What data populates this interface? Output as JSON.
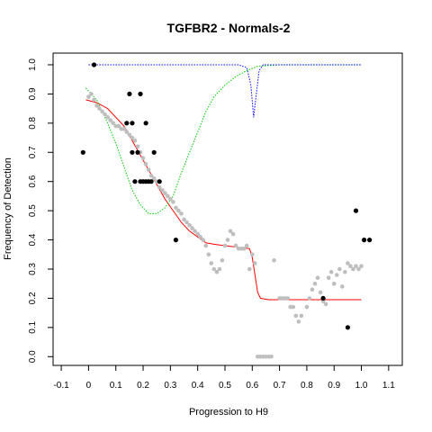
{
  "chart_data": {
    "type": "scatter",
    "title": "TGFBR2 - Normals-2",
    "xlabel": "Progression to H9",
    "ylabel": "Frequency of Detection",
    "xlim": [
      -0.13,
      1.15
    ],
    "ylim": [
      -0.03,
      1.04
    ],
    "x_ticks": [
      -0.1,
      0.0,
      0.1,
      0.2,
      0.3,
      0.4,
      0.5,
      0.6,
      0.7,
      0.8,
      0.9,
      1.0,
      1.1
    ],
    "x_tick_labels": [
      "-0.1",
      "0",
      "0.1",
      "0.2",
      "0.3",
      "0.4",
      "0.5",
      "0.6",
      "0.7",
      "0.8",
      "0.9",
      "1.0",
      "1.1"
    ],
    "y_ticks": [
      0.0,
      0.1,
      0.2,
      0.3,
      0.4,
      0.5,
      0.6,
      0.7,
      0.8,
      0.9,
      1.0
    ],
    "y_tick_labels": [
      "0.0",
      "0.1",
      "0.2",
      "0.3",
      "0.4",
      "0.5",
      "0.6",
      "0.7",
      "0.8",
      "0.9",
      "1.0"
    ],
    "grid": false,
    "colors": {
      "gray_points": "#bebebe",
      "black_points": "#000000",
      "red_curve": "#ff0000",
      "green_curve": "#00cc00",
      "blue_curve": "#0000ff"
    },
    "series": [
      {
        "kind": "points",
        "color_key": "black_points",
        "points": [
          [
            -0.02,
            0.7
          ],
          [
            0.02,
            1.0
          ],
          [
            0.15,
            0.9
          ],
          [
            0.19,
            0.9
          ],
          [
            0.14,
            0.8
          ],
          [
            0.16,
            0.8
          ],
          [
            0.21,
            0.8
          ],
          [
            0.16,
            0.7
          ],
          [
            0.18,
            0.7
          ],
          [
            0.24,
            0.7
          ],
          [
            0.17,
            0.6
          ],
          [
            0.19,
            0.6
          ],
          [
            0.2,
            0.6
          ],
          [
            0.21,
            0.6
          ],
          [
            0.22,
            0.6
          ],
          [
            0.23,
            0.6
          ],
          [
            0.26,
            0.6
          ],
          [
            0.32,
            0.4
          ],
          [
            0.86,
            0.2
          ],
          [
            0.95,
            0.1
          ],
          [
            0.98,
            0.5
          ],
          [
            1.01,
            0.4
          ],
          [
            1.03,
            0.4
          ]
        ]
      },
      {
        "kind": "points",
        "color_key": "gray_points",
        "points": [
          [
            0.0,
            0.89
          ],
          [
            0.01,
            0.9
          ],
          [
            0.02,
            0.88
          ],
          [
            0.03,
            0.86
          ],
          [
            0.04,
            0.85
          ],
          [
            0.05,
            0.84
          ],
          [
            0.06,
            0.83
          ],
          [
            0.07,
            0.82
          ],
          [
            0.08,
            0.81
          ],
          [
            0.09,
            0.8
          ],
          [
            0.1,
            0.79
          ],
          [
            0.11,
            0.79
          ],
          [
            0.12,
            0.78
          ],
          [
            0.13,
            0.78
          ],
          [
            0.14,
            0.77
          ],
          [
            0.15,
            0.76
          ],
          [
            0.16,
            0.75
          ],
          [
            0.17,
            0.74
          ],
          [
            0.18,
            0.72
          ],
          [
            0.19,
            0.7
          ],
          [
            0.2,
            0.68
          ],
          [
            0.21,
            0.66
          ],
          [
            0.22,
            0.64
          ],
          [
            0.23,
            0.62
          ],
          [
            0.24,
            0.61
          ],
          [
            0.25,
            0.6
          ],
          [
            0.26,
            0.58
          ],
          [
            0.27,
            0.57
          ],
          [
            0.28,
            0.56
          ],
          [
            0.29,
            0.55
          ],
          [
            0.3,
            0.54
          ],
          [
            0.31,
            0.53
          ],
          [
            0.32,
            0.51
          ],
          [
            0.33,
            0.5
          ],
          [
            0.34,
            0.49
          ],
          [
            0.35,
            0.47
          ],
          [
            0.36,
            0.46
          ],
          [
            0.37,
            0.45
          ],
          [
            0.38,
            0.44
          ],
          [
            0.39,
            0.43
          ],
          [
            0.4,
            0.42
          ],
          [
            0.41,
            0.41
          ],
          [
            0.42,
            0.4
          ],
          [
            0.43,
            0.38
          ],
          [
            0.44,
            0.35
          ],
          [
            0.45,
            0.32
          ],
          [
            0.46,
            0.3
          ],
          [
            0.47,
            0.29
          ],
          [
            0.48,
            0.3
          ],
          [
            0.49,
            0.33
          ],
          [
            0.5,
            0.38
          ],
          [
            0.51,
            0.4
          ],
          [
            0.52,
            0.43
          ],
          [
            0.53,
            0.42
          ],
          [
            0.54,
            0.38
          ],
          [
            0.55,
            0.37
          ],
          [
            0.56,
            0.37
          ],
          [
            0.57,
            0.37
          ],
          [
            0.58,
            0.38
          ],
          [
            0.59,
            0.3
          ],
          [
            0.6,
            0.35
          ],
          [
            0.61,
            0.32
          ],
          [
            0.62,
            0.0
          ],
          [
            0.63,
            0.0
          ],
          [
            0.64,
            0.0
          ],
          [
            0.65,
            0.0
          ],
          [
            0.66,
            0.0
          ],
          [
            0.67,
            0.0
          ],
          [
            0.68,
            0.33
          ],
          [
            0.7,
            0.2
          ],
          [
            0.71,
            0.2
          ],
          [
            0.72,
            0.2
          ],
          [
            0.73,
            0.2
          ],
          [
            0.74,
            0.17
          ],
          [
            0.75,
            0.17
          ],
          [
            0.76,
            0.14
          ],
          [
            0.77,
            0.12
          ],
          [
            0.78,
            0.14
          ],
          [
            0.8,
            0.17
          ],
          [
            0.81,
            0.2
          ],
          [
            0.82,
            0.23
          ],
          [
            0.83,
            0.25
          ],
          [
            0.84,
            0.27
          ],
          [
            0.85,
            0.22
          ],
          [
            0.86,
            0.19
          ],
          [
            0.87,
            0.18
          ],
          [
            0.88,
            0.27
          ],
          [
            0.89,
            0.29
          ],
          [
            0.9,
            0.25
          ],
          [
            0.91,
            0.28
          ],
          [
            0.92,
            0.3
          ],
          [
            0.93,
            0.24
          ],
          [
            0.94,
            0.29
          ],
          [
            0.95,
            0.32
          ],
          [
            0.96,
            0.31
          ],
          [
            0.97,
            0.3
          ],
          [
            0.98,
            0.31
          ],
          [
            0.99,
            0.3
          ],
          [
            1.0,
            0.31
          ]
        ]
      },
      {
        "kind": "line",
        "style": "solid",
        "color_key": "red_curve",
        "points": [
          [
            -0.01,
            0.88
          ],
          [
            0.03,
            0.87
          ],
          [
            0.07,
            0.85
          ],
          [
            0.1,
            0.82
          ],
          [
            0.13,
            0.79
          ],
          [
            0.16,
            0.74
          ],
          [
            0.19,
            0.69
          ],
          [
            0.22,
            0.64
          ],
          [
            0.25,
            0.59
          ],
          [
            0.28,
            0.54
          ],
          [
            0.31,
            0.5
          ],
          [
            0.34,
            0.46
          ],
          [
            0.37,
            0.43
          ],
          [
            0.4,
            0.41
          ],
          [
            0.43,
            0.39
          ],
          [
            0.46,
            0.385
          ],
          [
            0.5,
            0.38
          ],
          [
            0.55,
            0.375
          ],
          [
            0.59,
            0.37
          ],
          [
            0.6,
            0.34
          ],
          [
            0.61,
            0.28
          ],
          [
            0.62,
            0.22
          ],
          [
            0.63,
            0.2
          ],
          [
            0.66,
            0.195
          ],
          [
            0.75,
            0.195
          ],
          [
            0.9,
            0.195
          ],
          [
            1.0,
            0.195
          ]
        ]
      },
      {
        "kind": "line",
        "style": "dotted",
        "color_key": "green_curve",
        "points": [
          [
            -0.01,
            0.92
          ],
          [
            0.03,
            0.88
          ],
          [
            0.07,
            0.8
          ],
          [
            0.1,
            0.73
          ],
          [
            0.13,
            0.65
          ],
          [
            0.16,
            0.57
          ],
          [
            0.19,
            0.52
          ],
          [
            0.22,
            0.49
          ],
          [
            0.25,
            0.49
          ],
          [
            0.28,
            0.51
          ],
          [
            0.31,
            0.55
          ],
          [
            0.34,
            0.63
          ],
          [
            0.37,
            0.7
          ],
          [
            0.4,
            0.77
          ],
          [
            0.43,
            0.84
          ],
          [
            0.46,
            0.89
          ],
          [
            0.5,
            0.93
          ],
          [
            0.54,
            0.96
          ],
          [
            0.58,
            0.98
          ],
          [
            0.62,
            0.995
          ],
          [
            0.7,
            1.0
          ],
          [
            0.85,
            1.0
          ],
          [
            1.0,
            1.0
          ]
        ]
      },
      {
        "kind": "line",
        "style": "dotted",
        "color_key": "blue_curve",
        "points": [
          [
            0.0,
            1.0
          ],
          [
            0.3,
            1.0
          ],
          [
            0.55,
            1.0
          ],
          [
            0.58,
            0.99
          ],
          [
            0.595,
            0.93
          ],
          [
            0.605,
            0.82
          ],
          [
            0.615,
            0.9
          ],
          [
            0.625,
            0.98
          ],
          [
            0.64,
            1.0
          ],
          [
            0.8,
            1.0
          ],
          [
            1.0,
            1.0
          ]
        ]
      }
    ]
  }
}
